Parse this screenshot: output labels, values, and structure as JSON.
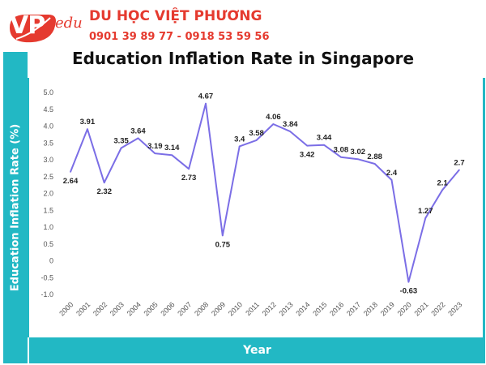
{
  "brand": {
    "logo_vp": "VP",
    "logo_edu": "edu",
    "name": "DU HỌC VIỆT PHƯƠNG",
    "phones": "0901 39 89 77 - 0918 53 59 56",
    "accent_color": "#e53a2f",
    "band_color": "#22b8c4"
  },
  "chart_data": {
    "type": "line",
    "title": "Education Inflation Rate in Singapore",
    "xlabel": "Year",
    "ylabel": "Education Inflation Rate (%)",
    "ylim": [
      -1.0,
      5.0
    ],
    "yticks": [
      "5.0",
      "4.5",
      "4.0",
      "3.5",
      "3.0",
      "2.5",
      "2.0",
      "1.5",
      "1.0",
      "0.5",
      "0",
      "-0.5",
      "-1.0"
    ],
    "categories": [
      "2000",
      "2001",
      "2002",
      "2003",
      "2004",
      "2005",
      "2006",
      "2007",
      "2008",
      "2009",
      "2010",
      "2011",
      "2012",
      "2013",
      "2014",
      "2015",
      "2016",
      "2017",
      "2018",
      "2019",
      "2020",
      "2021",
      "2022",
      "2023"
    ],
    "values": [
      2.64,
      3.91,
      2.32,
      3.35,
      3.64,
      3.19,
      3.14,
      2.73,
      4.67,
      0.75,
      3.4,
      3.58,
      4.06,
      3.84,
      3.42,
      3.44,
      3.08,
      3.02,
      2.88,
      2.4,
      -0.63,
      1.27,
      2.1,
      2.7
    ],
    "data_labels": [
      "2.64",
      "3.91",
      "2.32",
      "3.35",
      "3.64",
      "3.19",
      "3.14",
      "2.73",
      "4.67",
      "0.75",
      "3.4",
      "3.58",
      "4.06",
      "3.84",
      "3.42",
      "3.44",
      "3.08",
      "3.02",
      "2.88",
      "2.4",
      "-0.63",
      "1.27",
      "2.1",
      "2.7"
    ],
    "line_color": "#7b6ee6",
    "grid": false,
    "legend": "none"
  }
}
